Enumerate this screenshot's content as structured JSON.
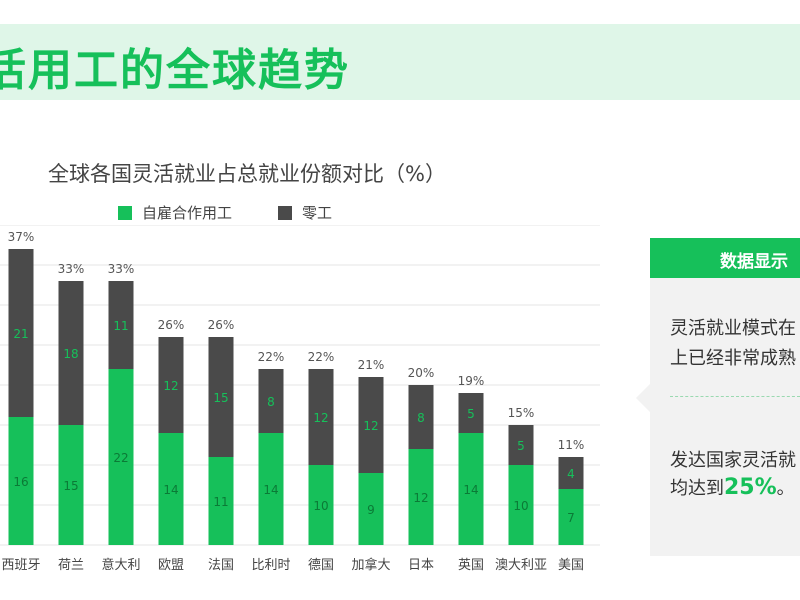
{
  "header": {
    "title": "活用工的全球趋势"
  },
  "chart_data": {
    "type": "bar",
    "stacked": true,
    "title": "全球各国灵活就业占总就业份额对比（%）",
    "categories": [
      "西班牙",
      "荷兰",
      "意大利",
      "欧盟",
      "法国",
      "比利时",
      "德国",
      "加拿大",
      "日本",
      "英国",
      "澳大利亚",
      "美国"
    ],
    "series": [
      {
        "name": "自雇合作用工",
        "color": "#16c05a",
        "values": [
          16,
          15,
          22,
          14,
          11,
          14,
          10,
          9,
          12,
          14,
          10,
          7
        ]
      },
      {
        "name": "零工",
        "color": "#4a4a4a",
        "values": [
          21,
          18,
          11,
          12,
          15,
          8,
          12,
          12,
          8,
          5,
          5,
          4
        ]
      }
    ],
    "totals": [
      "37%",
      "33%",
      "33%",
      "26%",
      "26%",
      "22%",
      "22%",
      "21%",
      "20%",
      "19%",
      "15%",
      "11%"
    ],
    "ylim": [
      0,
      40
    ],
    "grid": true,
    "legend_position": "top-left"
  },
  "panel": {
    "title": "数据显示",
    "line1": "灵活就业模式在",
    "line2": "上已经非常成熟",
    "line3": "发达国家灵活就",
    "line4_prefix": "均达到",
    "line4_highlight": "25%",
    "line4_suffix": "。"
  },
  "colors": {
    "accent": "#16c05a",
    "dark": "#4a4a4a",
    "header_bg": "#dff6e8",
    "panel_bg": "#f2f2f2"
  }
}
